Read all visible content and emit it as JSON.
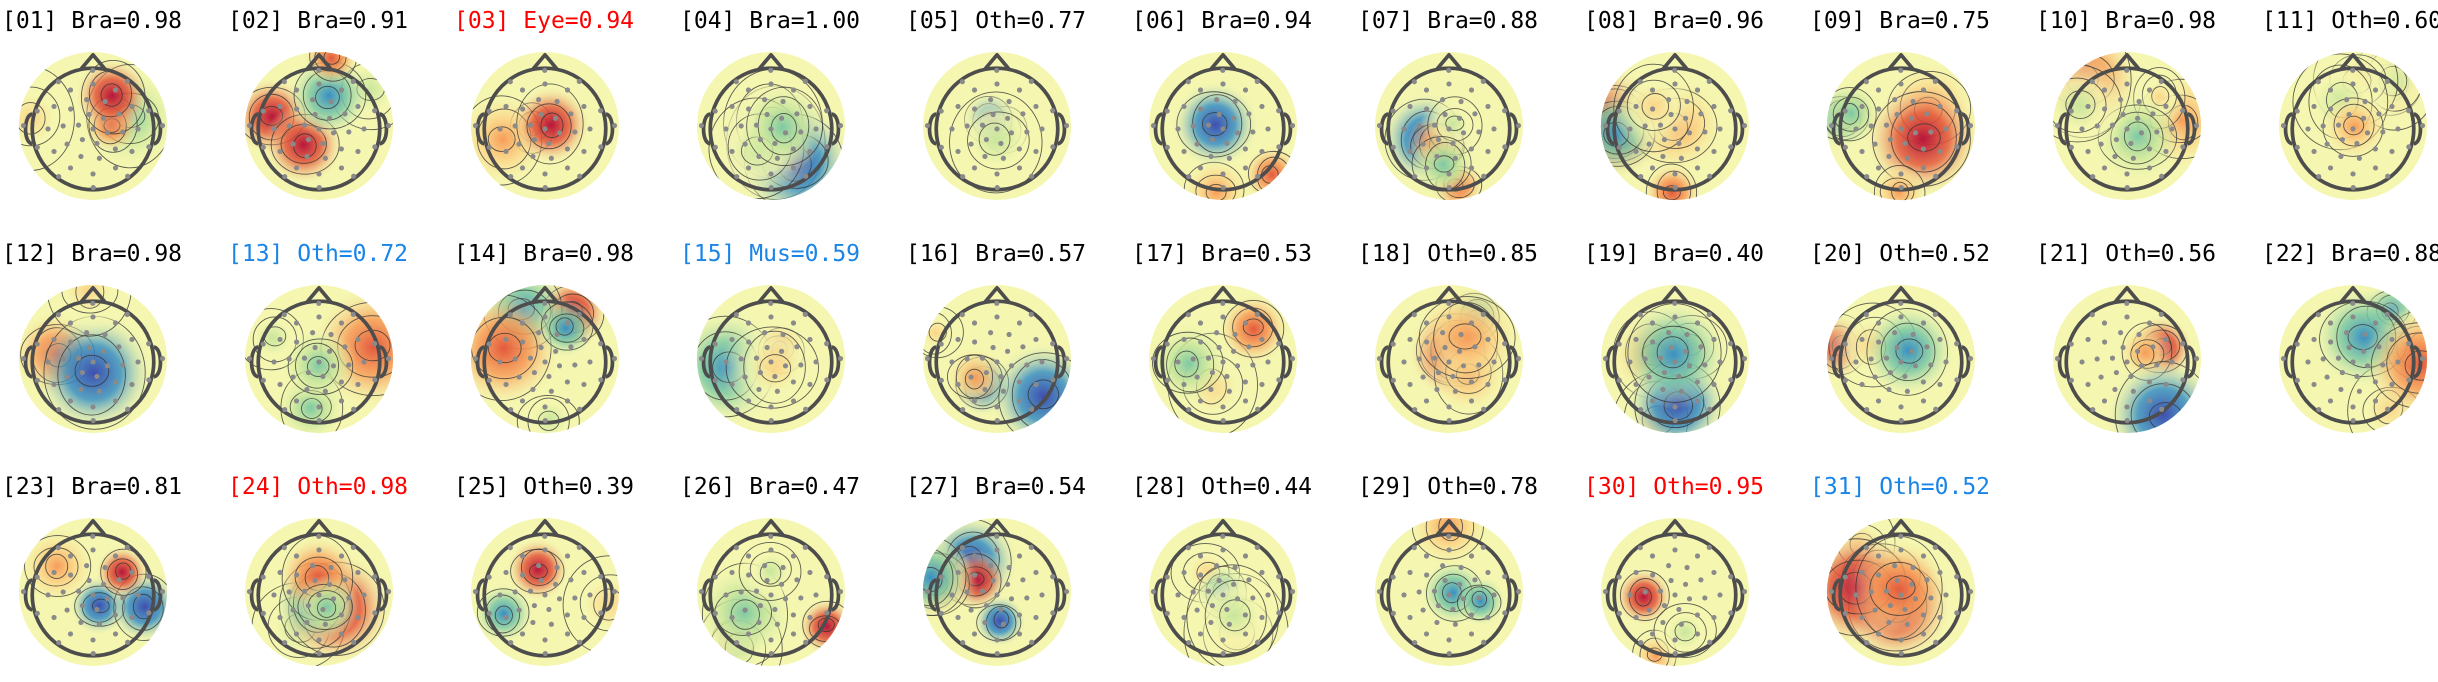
{
  "colors": {
    "black": "#000000",
    "red": "#ff0000",
    "blue": "#1a85e6",
    "head_outline": "#4d4d4d",
    "electrode": "#8a8a8a",
    "contour": "#333333"
  },
  "palette": [
    "#3f4fb0",
    "#3990c4",
    "#7fc9a4",
    "#c8e69c",
    "#f5f7b0",
    "#fbd587",
    "#f79d59",
    "#e35a3d",
    "#b7163b"
  ],
  "components": [
    {
      "id": "[01]",
      "label": "Bra=0.98",
      "color": "black",
      "seed": 1
    },
    {
      "id": "[02]",
      "label": "Bra=0.91",
      "color": "black",
      "seed": 2
    },
    {
      "id": "[03]",
      "label": "Eye=0.94",
      "color": "red",
      "seed": 3
    },
    {
      "id": "[04]",
      "label": "Bra=1.00",
      "color": "black",
      "seed": 4
    },
    {
      "id": "[05]",
      "label": "Oth=0.77",
      "color": "black",
      "seed": 5
    },
    {
      "id": "[06]",
      "label": "Bra=0.94",
      "color": "black",
      "seed": 6
    },
    {
      "id": "[07]",
      "label": "Bra=0.88",
      "color": "black",
      "seed": 7
    },
    {
      "id": "[08]",
      "label": "Bra=0.96",
      "color": "black",
      "seed": 8
    },
    {
      "id": "[09]",
      "label": "Bra=0.75",
      "color": "black",
      "seed": 9
    },
    {
      "id": "[10]",
      "label": "Bra=0.98",
      "color": "black",
      "seed": 10
    },
    {
      "id": "[11]",
      "label": "Oth=0.60",
      "color": "black",
      "seed": 11
    },
    {
      "id": "[12]",
      "label": "Bra=0.98",
      "color": "black",
      "seed": 12
    },
    {
      "id": "[13]",
      "label": "Oth=0.72",
      "color": "blue",
      "seed": 13
    },
    {
      "id": "[14]",
      "label": "Bra=0.98",
      "color": "black",
      "seed": 14
    },
    {
      "id": "[15]",
      "label": "Mus=0.59",
      "color": "blue",
      "seed": 15
    },
    {
      "id": "[16]",
      "label": "Bra=0.57",
      "color": "black",
      "seed": 16
    },
    {
      "id": "[17]",
      "label": "Bra=0.53",
      "color": "black",
      "seed": 17
    },
    {
      "id": "[18]",
      "label": "Oth=0.85",
      "color": "black",
      "seed": 18
    },
    {
      "id": "[19]",
      "label": "Bra=0.40",
      "color": "black",
      "seed": 19
    },
    {
      "id": "[20]",
      "label": "Oth=0.52",
      "color": "black",
      "seed": 20
    },
    {
      "id": "[21]",
      "label": "Oth=0.56",
      "color": "black",
      "seed": 21
    },
    {
      "id": "[22]",
      "label": "Bra=0.88",
      "color": "black",
      "seed": 22
    },
    {
      "id": "[23]",
      "label": "Bra=0.81",
      "color": "black",
      "seed": 23
    },
    {
      "id": "[24]",
      "label": "Oth=0.98",
      "color": "red",
      "seed": 24
    },
    {
      "id": "[25]",
      "label": "Oth=0.39",
      "color": "black",
      "seed": 25
    },
    {
      "id": "[26]",
      "label": "Bra=0.47",
      "color": "black",
      "seed": 26
    },
    {
      "id": "[27]",
      "label": "Bra=0.54",
      "color": "black",
      "seed": 27
    },
    {
      "id": "[28]",
      "label": "Oth=0.44",
      "color": "black",
      "seed": 28
    },
    {
      "id": "[29]",
      "label": "Oth=0.78",
      "color": "black",
      "seed": 29
    },
    {
      "id": "[30]",
      "label": "Oth=0.95",
      "color": "red",
      "seed": 30
    },
    {
      "id": "[31]",
      "label": "Oth=0.52",
      "color": "blue",
      "seed": 31
    }
  ]
}
